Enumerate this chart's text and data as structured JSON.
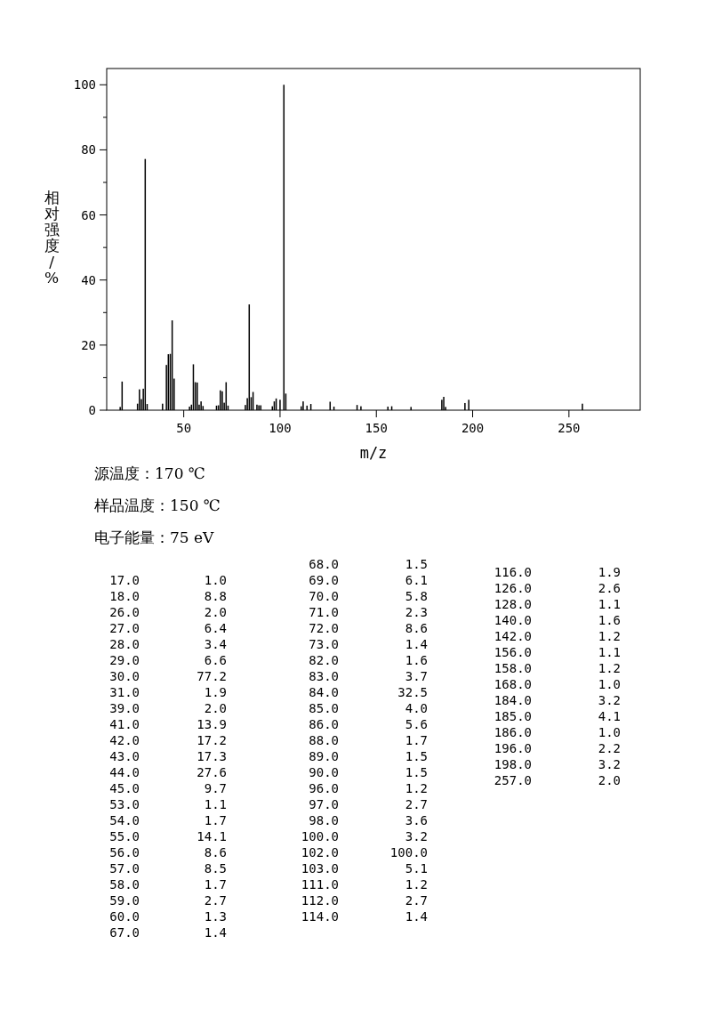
{
  "chart_data": {
    "type": "bar",
    "xlabel": "m/z",
    "ylabel": "相对强度/%",
    "color": "#000000",
    "x": [
      17,
      18,
      26,
      27,
      28,
      29,
      30,
      31,
      39,
      41,
      42,
      43,
      44,
      45,
      53,
      54,
      55,
      56,
      57,
      58,
      59,
      60,
      67,
      68,
      69,
      70,
      71,
      72,
      73,
      82,
      83,
      84,
      85,
      86,
      88,
      89,
      90,
      96,
      97,
      98,
      100,
      102,
      103,
      111,
      112,
      114,
      116,
      126,
      128,
      140,
      142,
      156,
      158,
      168,
      184,
      185,
      186,
      196,
      198,
      257
    ],
    "values": [
      1.0,
      8.8,
      2.0,
      6.4,
      3.4,
      6.6,
      77.2,
      1.9,
      2.0,
      13.9,
      17.2,
      17.3,
      27.6,
      9.7,
      1.1,
      1.7,
      14.1,
      8.6,
      8.5,
      1.7,
      2.7,
      1.3,
      1.4,
      1.5,
      6.1,
      5.8,
      2.3,
      8.6,
      1.4,
      1.6,
      3.7,
      32.5,
      4.0,
      5.6,
      1.7,
      1.5,
      1.5,
      1.2,
      2.7,
      3.6,
      3.2,
      100.0,
      5.1,
      1.2,
      2.7,
      1.4,
      1.9,
      2.6,
      1.1,
      1.6,
      1.2,
      1.1,
      1.2,
      1.0,
      3.2,
      4.1,
      1.0,
      2.2,
      3.2,
      2.0
    ],
    "xlim": [
      10,
      287
    ],
    "ylim": [
      0,
      105
    ],
    "xticks": [
      50,
      100,
      150,
      200,
      250
    ],
    "yticks": [
      0,
      {
        "value": 10,
        "label": null
      },
      20,
      {
        "value": 30,
        "label": null
      },
      40,
      {
        "value": 50,
        "label": null
      },
      60,
      {
        "value": 70,
        "label": null
      },
      80,
      {
        "value": 90,
        "label": null
      },
      100
    ],
    "annotations": [
      "源温度：170 ℃",
      "样品温度：150 ℃",
      "电子能量：75 eV",
      "17.0",
      "1.0",
      "18.0",
      "8.8",
      "26.0",
      "2.0",
      "27.0",
      "6.4",
      "28.0",
      "3.4",
      "29.0",
      "6.6",
      "30.0",
      "77.2",
      "31.0",
      "1.9",
      "39.0",
      "2.0",
      "41.0",
      "13.9",
      "42.0",
      "17.2",
      "43.0",
      "17.3",
      "44.0",
      "27.6",
      "45.0",
      "9.7",
      "53.0",
      "1.1",
      "54.0",
      "1.7",
      "55.0",
      "14.1",
      "56.0",
      "8.6",
      "57.0",
      "8.5",
      "58.0",
      "1.7",
      "59.0",
      "2.7",
      "60.0",
      "1.3",
      "67.0",
      "1.4",
      "68.0",
      "1.5",
      "69.0",
      "6.1",
      "70.0",
      "5.8",
      "71.0",
      "2.3",
      "72.0",
      "8.6",
      "73.0",
      "1.4",
      "82.0",
      "1.6",
      "83.0",
      "3.7",
      "84.0",
      "32.5",
      "85.0",
      "4.0",
      "86.0",
      "5.6",
      "88.0",
      "1.7",
      "89.0",
      "1.5",
      "90.0",
      "1.5",
      "96.0",
      "1.2",
      "97.0",
      "2.7",
      "98.0",
      "3.6",
      "100.0",
      "3.2",
      "102.0",
      "100.0",
      "103.0",
      "5.1",
      "111.0",
      "1.2",
      "112.0",
      "2.7",
      "114.0",
      "1.4",
      "116.0",
      "1.9",
      "126.0",
      "2.6",
      "128.0",
      "1.1",
      "140.0",
      "1.6",
      "142.0",
      "1.2",
      "156.0",
      "1.1",
      "158.0",
      "1.2",
      "168.0",
      "1.0",
      "184.0",
      "3.2",
      "185.0",
      "4.1",
      "186.0",
      "1.0",
      "196.0",
      "2.2",
      "198.0",
      "3.2",
      "257.0",
      "2.0"
    ]
  }
}
